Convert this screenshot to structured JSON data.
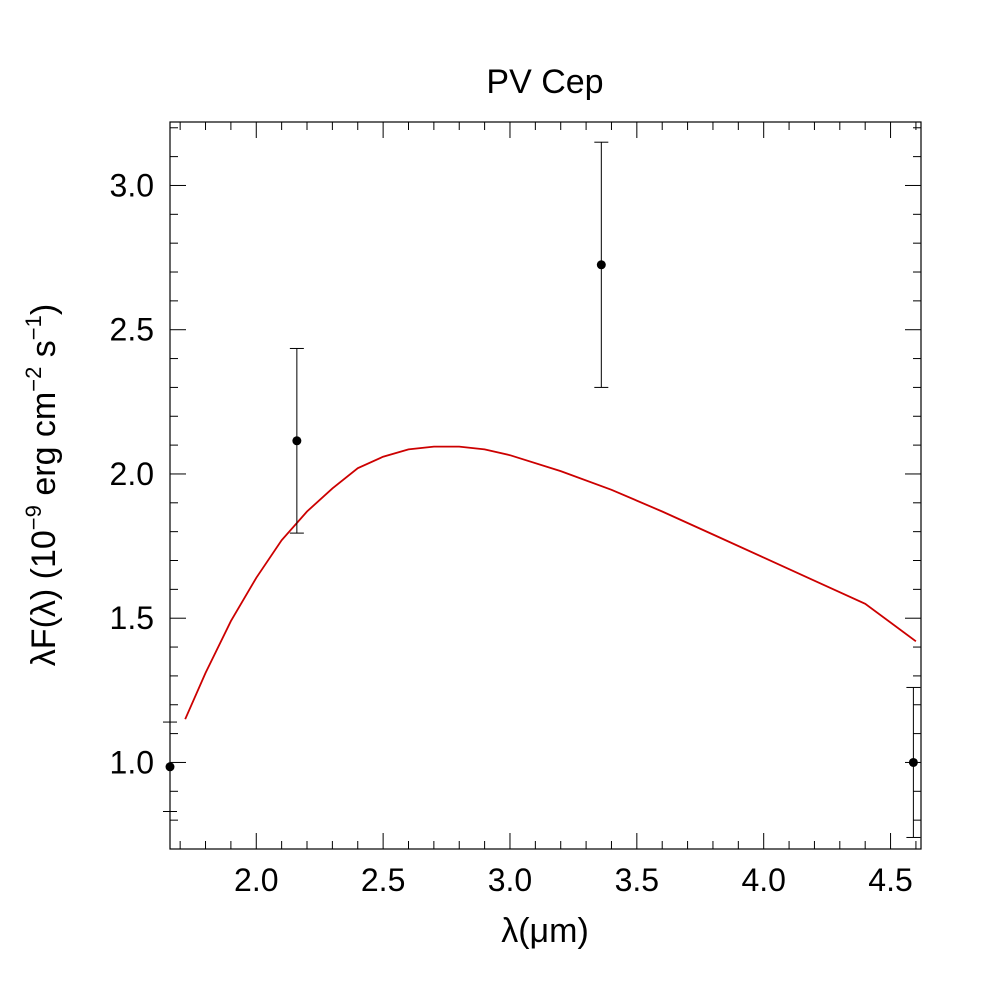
{
  "chart_data": {
    "type": "scatter",
    "title": "PV Cep",
    "xlabel": "λ(μm)",
    "ylabel": {
      "prefix": "λF(λ) (10",
      "exp1": "−9",
      "mid1": " erg cm",
      "exp2": "−2",
      "mid2": " s",
      "exp3": "−1",
      "suffix": ")"
    },
    "xlim": [
      1.66,
      4.62
    ],
    "ylim": [
      0.7,
      3.22
    ],
    "x_major_ticks": [
      2.0,
      2.5,
      3.0,
      3.5,
      4.0,
      4.5
    ],
    "x_tick_labels": [
      "2.0",
      "2.5",
      "3.0",
      "3.5",
      "4.0",
      "4.5"
    ],
    "x_minor_step": 0.1,
    "y_major_ticks": [
      1.0,
      1.5,
      2.0,
      2.5,
      3.0
    ],
    "y_tick_labels": [
      "1.0",
      "1.5",
      "2.0",
      "2.5",
      "3.0"
    ],
    "y_minor_step": 0.1,
    "grid": false,
    "series": [
      {
        "kind": "points_with_errorbars",
        "color": "#000000",
        "points": [
          {
            "x": 1.66,
            "y": 0.985,
            "yerr_low": 0.83,
            "yerr_high": 1.14
          },
          {
            "x": 2.16,
            "y": 2.115,
            "yerr_low": 1.795,
            "yerr_high": 2.435
          },
          {
            "x": 3.36,
            "y": 2.725,
            "yerr_low": 2.3,
            "yerr_high": 3.15
          },
          {
            "x": 4.59,
            "y": 1.0,
            "yerr_low": 0.74,
            "yerr_high": 1.26
          }
        ]
      },
      {
        "kind": "line",
        "color": "#cc0000",
        "x": [
          1.72,
          1.8,
          1.9,
          2.0,
          2.1,
          2.2,
          2.3,
          2.4,
          2.5,
          2.6,
          2.7,
          2.8,
          2.9,
          3.0,
          3.2,
          3.4,
          3.6,
          3.8,
          4.0,
          4.2,
          4.4,
          4.6
        ],
        "y": [
          1.15,
          1.31,
          1.49,
          1.64,
          1.77,
          1.87,
          1.95,
          2.02,
          2.06,
          2.085,
          2.095,
          2.095,
          2.085,
          2.065,
          2.01,
          1.945,
          1.87,
          1.79,
          1.71,
          1.63,
          1.55,
          1.42
        ]
      }
    ]
  }
}
